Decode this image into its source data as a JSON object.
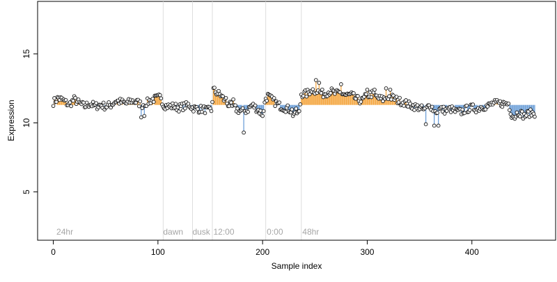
{
  "chart_data": {
    "type": "scatter",
    "title": "",
    "xlabel": "Sample index",
    "ylabel": "Expression",
    "xlim": [
      -15,
      480
    ],
    "ylim": [
      1.5,
      18.8
    ],
    "xticks": [
      0,
      100,
      200,
      300,
      400
    ],
    "yticks": [
      5,
      10,
      15
    ],
    "grid": false,
    "baseline": 11.3,
    "colors": {
      "above": "#f4a742",
      "below": "#6ea0d8",
      "marker_stroke": "#000000",
      "marker_fill": "#f0f0f0",
      "annotation": "#a6a6a6",
      "vline": "#dddddd"
    },
    "annotations": [
      {
        "x": 3,
        "label": "24hr"
      },
      {
        "x": 105,
        "label": "dawn"
      },
      {
        "x": 133,
        "label": "dusk"
      },
      {
        "x": 153,
        "label": "12:00"
      },
      {
        "x": 204,
        "label": "0:00"
      },
      {
        "x": 238,
        "label": "48hr"
      }
    ],
    "vlines": [
      105,
      133,
      152,
      203,
      237
    ],
    "anchors": [
      [
        0,
        11.5
      ],
      [
        5,
        11.8
      ],
      [
        10,
        11.6
      ],
      [
        15,
        11.3
      ],
      [
        20,
        11.7
      ],
      [
        25,
        11.4
      ],
      [
        30,
        11.2
      ],
      [
        35,
        11.4
      ],
      [
        40,
        11.2
      ],
      [
        45,
        11.3
      ],
      [
        50,
        11.2
      ],
      [
        55,
        11.3
      ],
      [
        60,
        11.6
      ],
      [
        65,
        11.5
      ],
      [
        70,
        11.4
      ],
      [
        75,
        11.6
      ],
      [
        80,
        11.5
      ],
      [
        85,
        11.3
      ],
      [
        90,
        11.5
      ],
      [
        95,
        11.7
      ],
      [
        100,
        11.8
      ],
      [
        103,
        11.9
      ],
      [
        105,
        11.3
      ],
      [
        110,
        11.2
      ],
      [
        115,
        11.2
      ],
      [
        120,
        11.1
      ],
      [
        125,
        11.2
      ],
      [
        130,
        11.3
      ],
      [
        133,
        11.1
      ],
      [
        138,
        11.0
      ],
      [
        143,
        11.0
      ],
      [
        148,
        10.9
      ],
      [
        151,
        10.9
      ],
      [
        153,
        12.4
      ],
      [
        156,
        12.2
      ],
      [
        160,
        12.0
      ],
      [
        165,
        11.5
      ],
      [
        170,
        11.2
      ],
      [
        175,
        11.0
      ],
      [
        180,
        10.8
      ],
      [
        185,
        10.9
      ],
      [
        190,
        11.3
      ],
      [
        195,
        11.0
      ],
      [
        200,
        10.6
      ],
      [
        203,
        11.8
      ],
      [
        206,
        11.9
      ],
      [
        210,
        11.6
      ],
      [
        215,
        11.3
      ],
      [
        220,
        11.1
      ],
      [
        225,
        11.0
      ],
      [
        230,
        10.8
      ],
      [
        235,
        10.7
      ],
      [
        237,
        12.1
      ],
      [
        242,
        12.1
      ],
      [
        247,
        12.4
      ],
      [
        252,
        12.3
      ],
      [
        258,
        12.1
      ],
      [
        265,
        12.3
      ],
      [
        270,
        12.1
      ],
      [
        275,
        12.2
      ],
      [
        280,
        12.0
      ],
      [
        285,
        12.0
      ],
      [
        290,
        11.7
      ],
      [
        295,
        11.6
      ],
      [
        300,
        12.0
      ],
      [
        305,
        12.1
      ],
      [
        310,
        11.8
      ],
      [
        315,
        11.7
      ],
      [
        320,
        11.9
      ],
      [
        325,
        11.8
      ],
      [
        330,
        11.6
      ],
      [
        335,
        11.5
      ],
      [
        340,
        11.3
      ],
      [
        345,
        11.2
      ],
      [
        350,
        11.1
      ],
      [
        355,
        10.9
      ],
      [
        360,
        11.3
      ],
      [
        365,
        10.8
      ],
      [
        370,
        11.0
      ],
      [
        375,
        10.9
      ],
      [
        380,
        11.0
      ],
      [
        385,
        10.8
      ],
      [
        390,
        10.8
      ],
      [
        395,
        11.0
      ],
      [
        400,
        11.1
      ],
      [
        405,
        11.0
      ],
      [
        410,
        11.2
      ],
      [
        415,
        11.2
      ],
      [
        420,
        11.4
      ],
      [
        425,
        11.4
      ],
      [
        430,
        11.4
      ],
      [
        435,
        11.4
      ],
      [
        438,
        10.6
      ],
      [
        440,
        10.5
      ],
      [
        445,
        10.8
      ],
      [
        450,
        10.5
      ],
      [
        455,
        10.7
      ],
      [
        460,
        10.7
      ]
    ],
    "outliers": [
      [
        84,
        10.4
      ],
      [
        87,
        10.5
      ],
      [
        182,
        9.3
      ],
      [
        356,
        9.9
      ],
      [
        364,
        9.8
      ],
      [
        368,
        9.8
      ],
      [
        251,
        13.1
      ],
      [
        254,
        12.9
      ],
      [
        275,
        12.8
      ],
      [
        246,
        12.3
      ],
      [
        300,
        12.4
      ],
      [
        307,
        12.4
      ],
      [
        318,
        12.5
      ],
      [
        322,
        12.4
      ],
      [
        205,
        12.1
      ],
      [
        165,
        11.8
      ],
      [
        172,
        11.7
      ],
      [
        200,
        10.5
      ],
      [
        229,
        10.5
      ],
      [
        441,
        10.3
      ]
    ]
  }
}
